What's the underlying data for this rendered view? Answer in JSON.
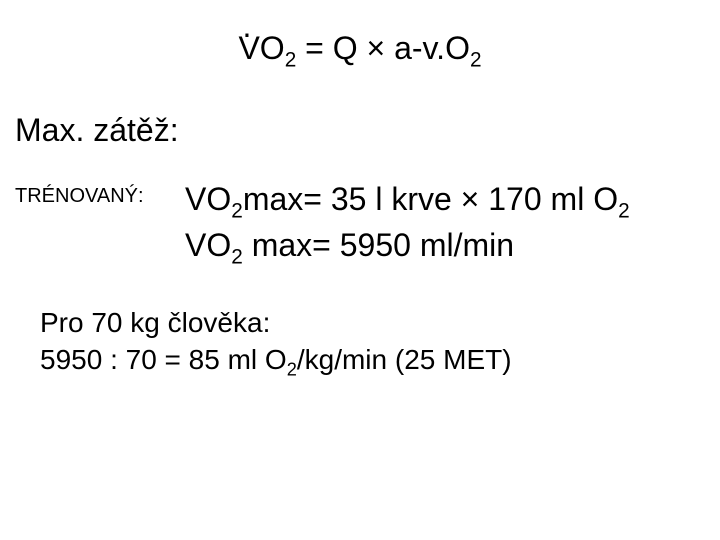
{
  "formula": {
    "dot": ".",
    "text_before_sub": "VO",
    "sub1": "2",
    "text_mid": " = Q × a-v.O",
    "sub2": "2"
  },
  "heading": "Max. zátěž:",
  "trained": {
    "label": "TRÉNOVANÝ:",
    "line1_a": "VO",
    "line1_sub": "2",
    "line1_b": "max= 35 l krve × 170 ml O",
    "line1_sub2": "2",
    "line2_a": "VO",
    "line2_sub": "2",
    "line2_b": " max= 5950 ml/min"
  },
  "bottom": {
    "line1": "Pro 70 kg člověka:",
    "line2_a": "5950 : 70 = 85 ml O",
    "line2_sub": "2",
    "line2_b": "/kg/min (25 MET)"
  },
  "colors": {
    "bg": "#ffffff",
    "text": "#000000"
  }
}
